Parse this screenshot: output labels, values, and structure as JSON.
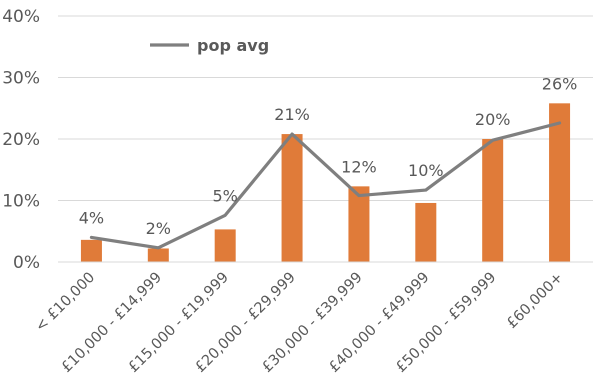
{
  "chart_data": {
    "type": "bar",
    "title": "",
    "xlabel": "",
    "ylabel": "",
    "ylim": [
      0,
      40
    ],
    "yticks": [
      "0%",
      "10%",
      "20%",
      "30%",
      "40%"
    ],
    "y_tick_values": [
      0,
      10,
      20,
      30,
      40
    ],
    "grid": true,
    "legend_position": "top-left",
    "categories": [
      "< £10,000",
      "£10,000 - £14,999",
      "£15,000 - £19,999",
      "£20,000 - £29,999",
      "£30,000 - £39,999",
      "£40,000 - £49,999",
      "£50,000 - £59,999",
      "£60,000+"
    ],
    "series": [
      {
        "type": "bar",
        "values": [
          3.6,
          2.2,
          5.3,
          20.8,
          12.3,
          9.6,
          20.0,
          25.8
        ],
        "data_labels": [
          "4%",
          "2%",
          "5%",
          "21%",
          "12%",
          "10%",
          "20%",
          "26%"
        ],
        "color": "#E07B39"
      },
      {
        "name": "pop avg",
        "type": "line",
        "values": [
          4.0,
          2.3,
          7.6,
          20.8,
          10.8,
          11.7,
          19.8,
          22.6
        ],
        "color": "#7F7F7F"
      }
    ]
  }
}
